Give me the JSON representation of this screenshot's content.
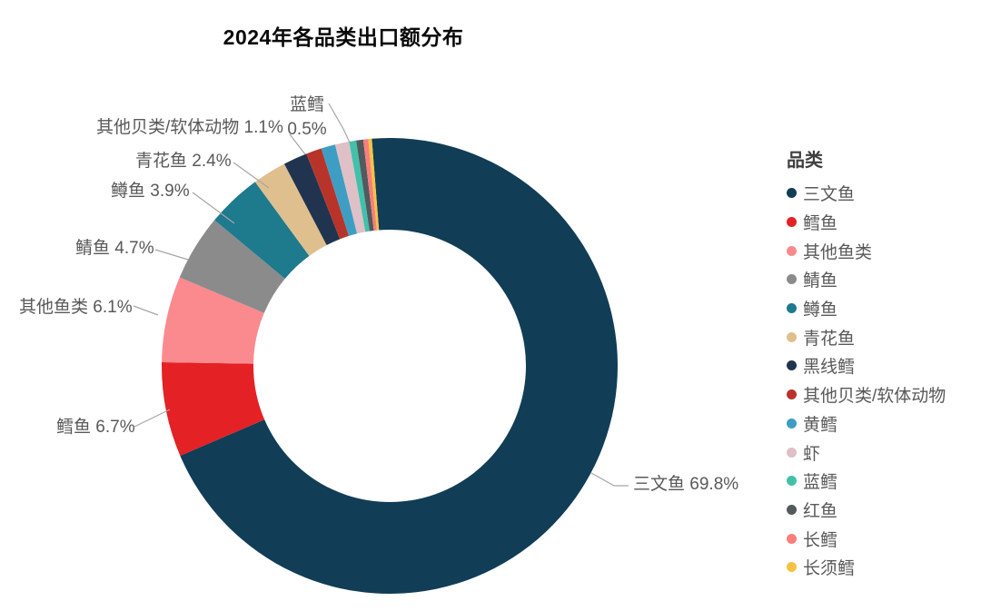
{
  "title": "2024年各品类出口额分布",
  "legend": {
    "title": "品类"
  },
  "chart_data": {
    "type": "pie",
    "subtype": "donut",
    "title": "2024年各品类出口额分布",
    "unit": "percent",
    "legend_position": "right",
    "legend_title": "品类",
    "series": [
      {
        "name": "三文鱼",
        "value": 69.8,
        "color": "#113D56",
        "label": "三文鱼 69.8%"
      },
      {
        "name": "鳕鱼",
        "value": 6.7,
        "color": "#E42125",
        "label": "鳕鱼 6.7%"
      },
      {
        "name": "其他鱼类",
        "value": 6.1,
        "color": "#FB8A8F",
        "label": "其他鱼类 6.1%"
      },
      {
        "name": "鲭鱼",
        "value": 4.7,
        "color": "#8B8B8B",
        "label": "鲭鱼 4.7%"
      },
      {
        "name": "鳟鱼",
        "value": 3.9,
        "color": "#1E7A8D",
        "label": "鳟鱼 3.9%"
      },
      {
        "name": "青花鱼",
        "value": 2.4,
        "color": "#E0BF8F",
        "label": "青花鱼 2.4%"
      },
      {
        "name": "黑线鳕",
        "value": 1.7,
        "color": "#20344F"
      },
      {
        "name": "其他贝类/软体动物",
        "value": 1.1,
        "color": "#B8342A",
        "label": "其他贝类/软体动物 1.1%"
      },
      {
        "name": "黄鳕",
        "value": 1.0,
        "color": "#3E9DC3"
      },
      {
        "name": "虾",
        "value": 1.0,
        "color": "#DFC0C7"
      },
      {
        "name": "蓝鳕",
        "value": 0.5,
        "color": "#41C1AB",
        "label": "蓝鳕 0.5%"
      },
      {
        "name": "红鱼",
        "value": 0.5,
        "color": "#525A5E"
      },
      {
        "name": "长鳕",
        "value": 0.35,
        "color": "#FA7E7A"
      },
      {
        "name": "长须鳕",
        "value": 0.25,
        "color": "#F5C342"
      }
    ]
  },
  "callouts": {
    "salmon": "三文鱼 69.8%",
    "cod": "鳕鱼 6.7%",
    "other_fish": "其他鱼类 6.1%",
    "mackerel": "鲭鱼 4.7%",
    "trout": "鳟鱼 3.9%",
    "chub_mackerel": "青花鱼 2.4%",
    "shellfish": "其他贝类/软体动物 1.1%",
    "blue_whiting_name": "蓝鳕",
    "blue_whiting_value": "0.5%"
  }
}
